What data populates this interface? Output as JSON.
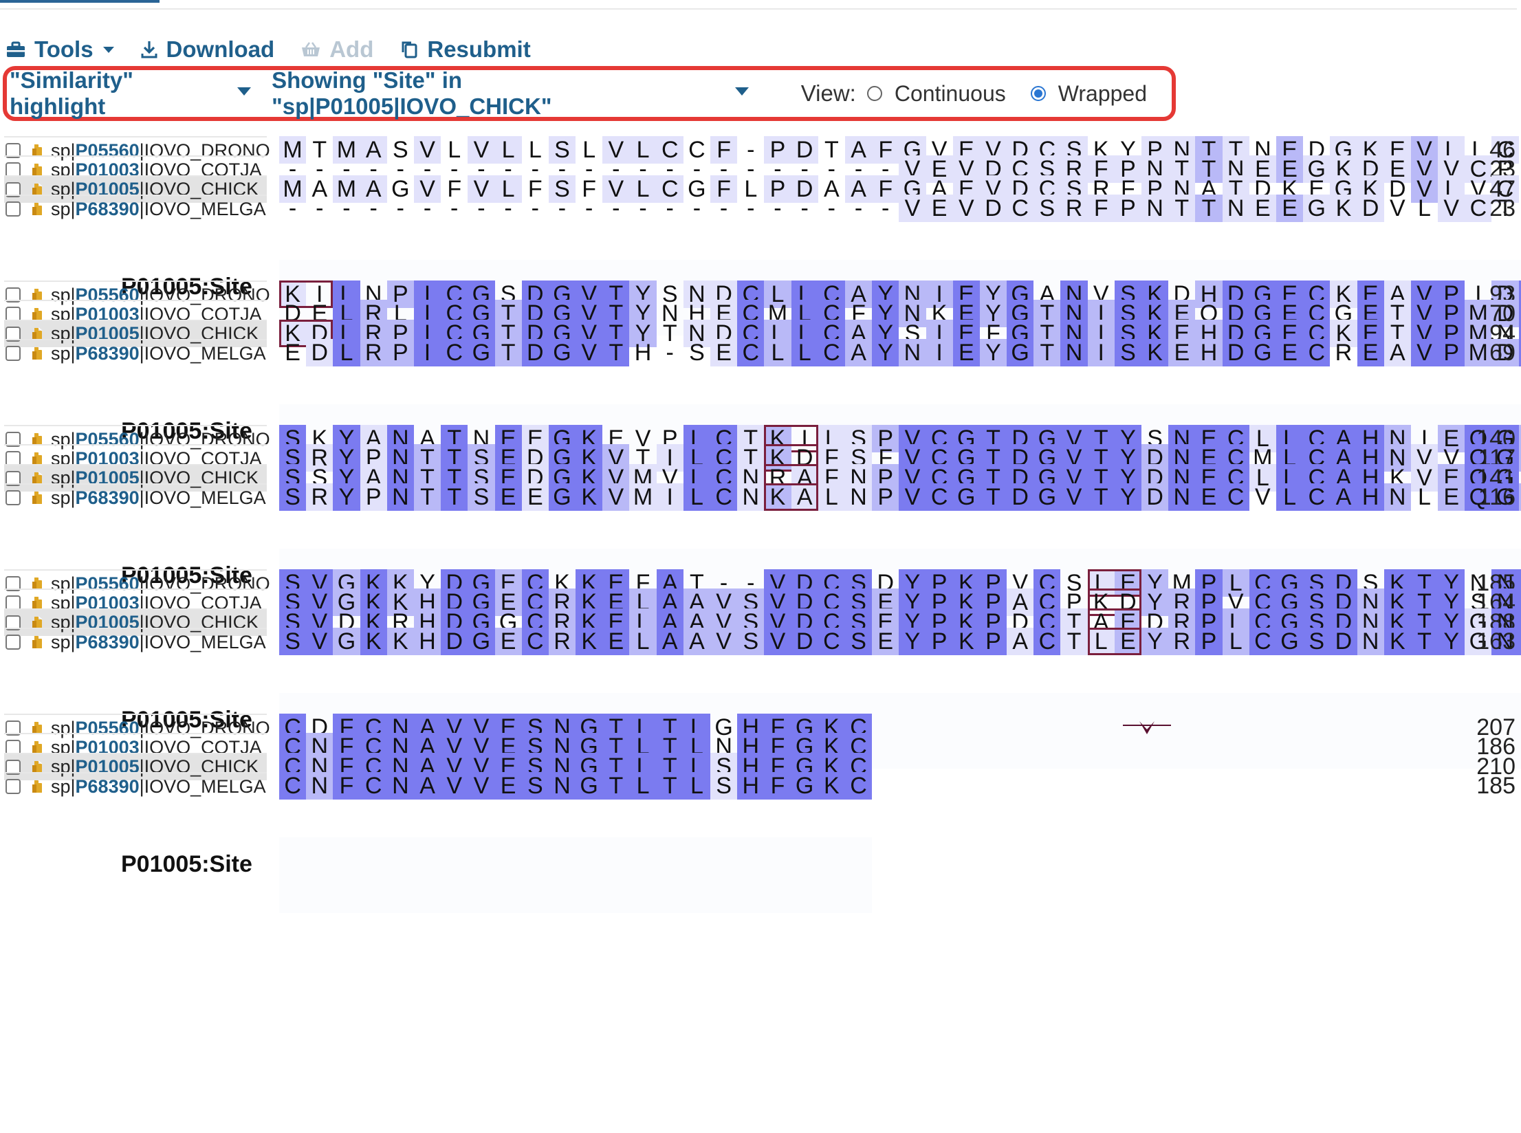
{
  "toolbar": {
    "tools": "Tools",
    "download": "Download",
    "add": "Add",
    "resubmit": "Resubmit"
  },
  "options": {
    "highlight": "\"Similarity\" highlight",
    "showing": "Showing \"Site\" in \"sp|P01005|IOVO_CHICK\"",
    "view_label": "View:",
    "continuous": "Continuous",
    "wrapped": "Wrapped",
    "selected_view": "Wrapped"
  },
  "colors": {
    "accent": "#1f5f8b",
    "highlight_box": "#e53935",
    "site_box": "#7a1f3d",
    "similarity_strong": "#7b7bf0",
    "similarity_mid": "#b9b9f7",
    "similarity_weak": "#e2e2fb"
  },
  "sequences": [
    {
      "prefix": "sp|",
      "acc": "P05560",
      "suffix": "|IOVO_DRONO",
      "highlighted": false
    },
    {
      "prefix": "sp|",
      "acc": "P01003",
      "suffix": "|IOVO_COTJA",
      "highlighted": false
    },
    {
      "prefix": "sp|",
      "acc": "P01005",
      "suffix": "|IOVO_CHICK",
      "highlighted": true
    },
    {
      "prefix": "sp|",
      "acc": "P68390",
      "suffix": "|IOVO_MELGA",
      "highlighted": false
    }
  ],
  "blocks": [
    {
      "rows": [
        {
          "residues": "MTMASVLVLLSLVLCCF-PDTAFGVEVDCSKYPNTTNEDGKEVLLCP",
          "end": "46"
        },
        {
          "residues": "-----------------------VEVDCSRFPNTTNEEGKDEVVCP",
          "end": "23"
        },
        {
          "residues": "MAMAGVFVLFSFVLCGFLPDAAFGAEVDCSRFPNATDKEGKDVLVCN",
          "end": "47"
        },
        {
          "residues": "-----------------------VEVDCSRFPNTTNEEGKDVLVCT",
          "end": "23"
        }
      ],
      "site_label": "P01005:Site"
    },
    {
      "rows": [
        {
          "residues": "KILNPICGSDGVTYSNDCLLCAYNIEYGANVSKDHDGECKEAVPIDC",
          "end": "93"
        },
        {
          "residues": "DELRLICGTDGVTYNHECMLCFYNKEYGTNISKEQDGECGETVPMDC",
          "end": "70"
        },
        {
          "residues": "KDLRPICGTDGVTYTNDCLLCAYSIEFGTNISKEHDGECKETVPMNC",
          "end": "94"
        },
        {
          "residues": "EDLRPICGTDGVTH-SECLLCAYNIEYGTNISKEHDGECREAVPMDC",
          "end": "69"
        }
      ],
      "site_label": "P01005:Site"
    },
    {
      "rows": [
        {
          "residues": "SKYANATNEEGKEVPLCTKILSPVCGTDGVTYSNECLLCAHNIEQGT",
          "end": "140"
        },
        {
          "residues": "SRYPNTTSEDGKVTILCTKDFSFVCGTDGVTYDNECMLCAHNVVQGT",
          "end": "117"
        },
        {
          "residues": "SSYANTTSEDGKVMVLCNRAFNPVCGTDGVTYDNECLLCAHKVEQGA",
          "end": "141"
        },
        {
          "residues": "SRYPNTTSEEGKVMILCNKALNPVCGTDGVTYDNECVLCAHNLEQGT",
          "end": "116"
        }
      ],
      "site_label": "P01005:Site"
    },
    {
      "rows": [
        {
          "residues": "SVGKKYDGECKKEFAT--VDCSDYPKPVCSLEYMPLCGSDSKTYNNK",
          "end": "185"
        },
        {
          "residues": "SVGKKHDGECRKELAAVSVDCSEYPKPACPKDYRPVCGSDNKTYSNK",
          "end": "164"
        },
        {
          "residues": "SVDKRHDGGCRKELAAVSVDCSEYPKPDCTAEDRPLCGSDNKTYGNK",
          "end": "188"
        },
        {
          "residues": "SVGKKHDGECRKELAAVSVDCSEYPKPACTLEYRPLCGSDNKTYGNK",
          "end": "163"
        }
      ],
      "site_label": "P01005:Site"
    },
    {
      "rows": [
        {
          "residues": "CDFCNAVVESNGTLTLGHFGKC",
          "end": "207"
        },
        {
          "residues": "CNFCNAVVESNGTLTLNHFGKC",
          "end": "186"
        },
        {
          "residues": "CNFCNAVVESNGTLTLSHFGKC",
          "end": "210"
        },
        {
          "residues": "CNFCNAVVESNGTLTLSHFGKC",
          "end": "185"
        }
      ],
      "site_label": "P01005:Site"
    }
  ]
}
